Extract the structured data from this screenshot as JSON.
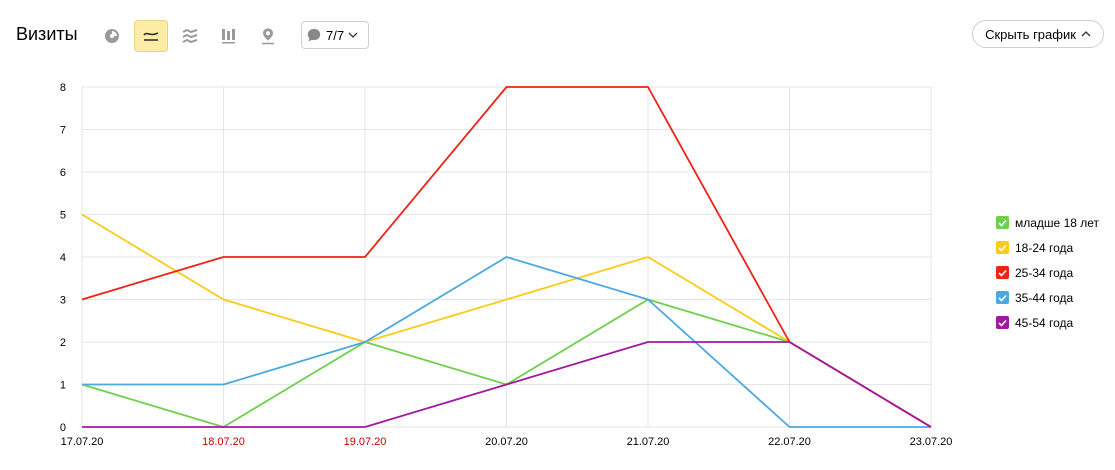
{
  "header": {
    "title": "Визиты",
    "series_count": "7/7",
    "hide_chart_label": "Скрыть график"
  },
  "toolbar": {
    "icons": [
      "pie-chart-icon",
      "line-chart-icon",
      "stacked-area-icon",
      "bar-chart-icon",
      "map-pin-icon"
    ],
    "active": "line-chart-icon"
  },
  "chart_data": {
    "type": "line",
    "title": "",
    "xlabel": "",
    "ylabel": "",
    "x": [
      "17.07.20",
      "18.07.20",
      "19.07.20",
      "20.07.20",
      "21.07.20",
      "22.07.20",
      "23.07.20"
    ],
    "weekend_labels": [
      "18.07.20",
      "19.07.20"
    ],
    "weekend_color": "#cc0000",
    "ylim": [
      0,
      8
    ],
    "yticks": [
      0,
      1,
      2,
      3,
      4,
      5,
      6,
      7,
      8
    ],
    "grid": true,
    "legend_position": "right",
    "series": [
      {
        "name": "младше 18 лет",
        "color": "#6fcf4e",
        "values": [
          1,
          0,
          2,
          1,
          3,
          2,
          0
        ]
      },
      {
        "name": "18-24 года",
        "color": "#fbcb18",
        "values": [
          5,
          3,
          2,
          3,
          4,
          2,
          0
        ]
      },
      {
        "name": "25-34 года",
        "color": "#f02214",
        "values": [
          3,
          4,
          4,
          8,
          8,
          2,
          0
        ]
      },
      {
        "name": "35-44 года",
        "color": "#4ba8e0",
        "values": [
          1,
          1,
          2,
          4,
          3,
          0,
          0
        ]
      },
      {
        "name": "45-54 года",
        "color": "#a218a0",
        "values": [
          0,
          0,
          0,
          1,
          2,
          2,
          0
        ]
      }
    ]
  }
}
